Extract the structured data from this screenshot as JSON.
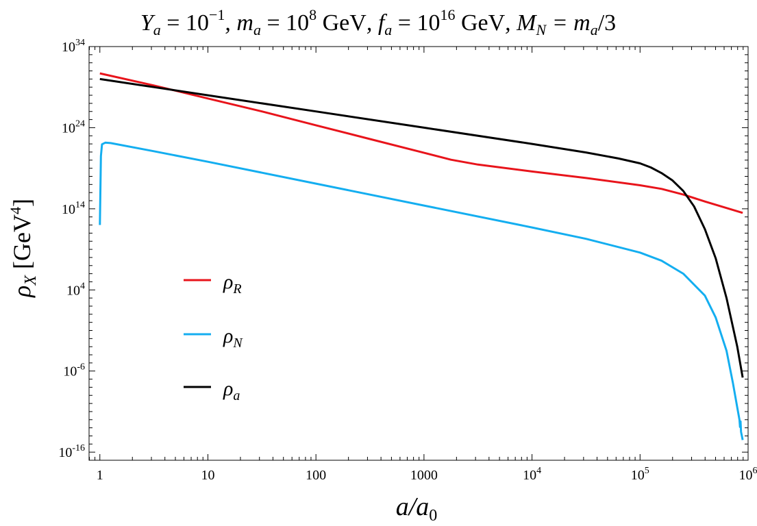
{
  "chart_data": {
    "type": "line",
    "title": "Y_a = 10^{-1}, m_a = 10^8 GeV, f_a = 10^{16} GeV, M_N = m_a/3",
    "title_parts": {
      "y_sym": "Y",
      "y_sub": "a",
      "y_eq": " = 10",
      "y_exp": "−1",
      "m_sym": ", m",
      "m_sub": "a",
      "m_eq": " = 10",
      "m_exp": "8",
      "m_unit": " GeV",
      "f_sym": ", f",
      "f_sub": "a",
      "f_eq": " = 10",
      "f_exp": "16",
      "f_unit": " GeV",
      "M_sym": ", M",
      "M_sub": "N",
      "M_eq": " = m",
      "M_sub2": "a",
      "M_tail": "/3"
    },
    "xlabel": "a/a_0",
    "xlabel_parts": {
      "main": "a/a",
      "sub": "0"
    },
    "ylabel": "ρ_X [GeV^4]",
    "ylabel_parts": {
      "rho": "ρ",
      "sub": "X",
      "unit": " [GeV",
      "exp": "4",
      "close": "]"
    },
    "x_scale": "log",
    "y_scale": "log",
    "xlim_log10": [
      -0.1,
      6.0
    ],
    "ylim_log10": [
      -17.0,
      34.0
    ],
    "x_ticks": [
      {
        "log": 0,
        "base": "1",
        "exp": ""
      },
      {
        "log": 1,
        "base": "10",
        "exp": ""
      },
      {
        "log": 2,
        "base": "100",
        "exp": ""
      },
      {
        "log": 3,
        "base": "1000",
        "exp": ""
      },
      {
        "log": 4,
        "base": "10",
        "exp": "4"
      },
      {
        "log": 5,
        "base": "10",
        "exp": "5"
      },
      {
        "log": 6,
        "base": "10",
        "exp": "6"
      }
    ],
    "y_ticks": [
      {
        "log": -16,
        "base": "10",
        "exp": "-16"
      },
      {
        "log": -6,
        "base": "10",
        "exp": "-6"
      },
      {
        "log": 4,
        "base": "10",
        "exp": "4"
      },
      {
        "log": 14,
        "base": "10",
        "exp": "14"
      },
      {
        "log": 24,
        "base": "10",
        "exp": "24"
      },
      {
        "log": 34,
        "base": "10",
        "exp": "34"
      }
    ],
    "legend": {
      "position": "left-center",
      "entries": [
        {
          "series": "rho_R",
          "sym": "ρ",
          "sub": "R"
        },
        {
          "series": "rho_N",
          "sym": "ρ",
          "sub": "N"
        },
        {
          "series": "rho_a",
          "sym": "ρ",
          "sub": "a"
        }
      ]
    },
    "series": [
      {
        "name": "rho_R",
        "color": "#e8141b",
        "points_log10": [
          [
            0.0,
            30.7
          ],
          [
            0.5,
            29.2
          ],
          [
            1.0,
            27.6
          ],
          [
            1.5,
            26.0
          ],
          [
            2.0,
            24.3
          ],
          [
            2.5,
            22.6
          ],
          [
            3.0,
            20.9
          ],
          [
            3.25,
            20.05
          ],
          [
            3.5,
            19.45
          ],
          [
            4.0,
            18.6
          ],
          [
            4.5,
            17.8
          ],
          [
            5.0,
            16.9
          ],
          [
            5.2,
            16.45
          ],
          [
            5.4,
            15.75
          ],
          [
            5.6,
            14.9
          ],
          [
            5.8,
            14.1
          ],
          [
            5.95,
            13.5
          ]
        ]
      },
      {
        "name": "rho_N",
        "color": "#14aef0",
        "points_log10": [
          [
            0.0,
            12.0
          ],
          [
            0.01,
            20.5
          ],
          [
            0.02,
            21.95
          ],
          [
            0.05,
            22.15
          ],
          [
            0.1,
            22.1
          ],
          [
            0.5,
            21.1
          ],
          [
            1.0,
            19.8
          ],
          [
            2.0,
            17.1
          ],
          [
            3.0,
            14.4
          ],
          [
            4.0,
            11.7
          ],
          [
            4.5,
            10.3
          ],
          [
            5.0,
            8.6
          ],
          [
            5.2,
            7.6
          ],
          [
            5.4,
            6.0
          ],
          [
            5.6,
            3.3
          ],
          [
            5.7,
            0.6
          ],
          [
            5.8,
            -3.5
          ],
          [
            5.86,
            -7.5
          ],
          [
            5.9,
            -10.5
          ],
          [
            5.92,
            -12.0
          ],
          [
            5.925,
            -12.9
          ],
          [
            5.93,
            -12.2
          ],
          [
            5.935,
            -13.5
          ],
          [
            5.95,
            -14.5
          ]
        ]
      },
      {
        "name": "rho_a",
        "color": "#000000",
        "points_log10": [
          [
            0.0,
            30.0
          ],
          [
            0.5,
            29.0
          ],
          [
            1.0,
            28.0
          ],
          [
            2.0,
            26.0
          ],
          [
            3.0,
            24.0
          ],
          [
            4.0,
            22.0
          ],
          [
            4.5,
            20.95
          ],
          [
            4.8,
            20.2
          ],
          [
            5.0,
            19.6
          ],
          [
            5.1,
            19.1
          ],
          [
            5.2,
            18.4
          ],
          [
            5.3,
            17.5
          ],
          [
            5.4,
            16.2
          ],
          [
            5.5,
            14.3
          ],
          [
            5.6,
            11.5
          ],
          [
            5.7,
            7.9
          ],
          [
            5.8,
            3.0
          ],
          [
            5.9,
            -3.0
          ],
          [
            5.95,
            -6.8
          ]
        ]
      }
    ]
  }
}
